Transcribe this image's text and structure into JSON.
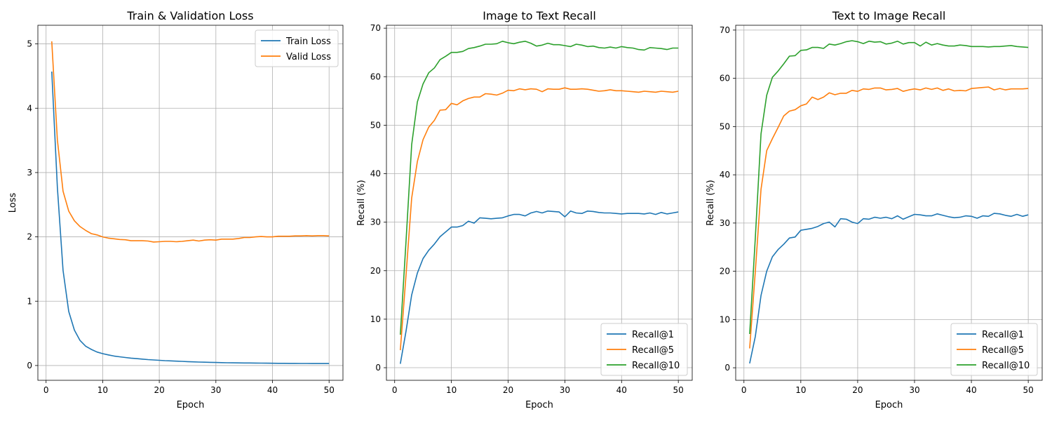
{
  "colors": {
    "blue": "#1f77b4",
    "orange": "#ff7f0e",
    "green": "#2ca02c",
    "grid": "#b0b0b0",
    "frame": "#000000"
  },
  "chart_data": [
    {
      "type": "line",
      "title": "Train & Validation Loss",
      "xlabel": "Epoch",
      "ylabel": "Loss",
      "xlim": [
        -1.45,
        52.45
      ],
      "ylim": [
        -0.23,
        5.29
      ],
      "xticks": [
        "0",
        "10",
        "20",
        "30",
        "40",
        "50"
      ],
      "yticks": [
        "0",
        "1",
        "2",
        "3",
        "4",
        "5"
      ],
      "grid": true,
      "legend_position": "top-right",
      "x": [
        1,
        2,
        3,
        4,
        5,
        6,
        7,
        8,
        9,
        10,
        11,
        12,
        13,
        14,
        15,
        16,
        17,
        18,
        19,
        20,
        21,
        22,
        23,
        24,
        25,
        26,
        27,
        28,
        29,
        30,
        31,
        32,
        33,
        34,
        35,
        36,
        37,
        38,
        39,
        40,
        41,
        42,
        43,
        44,
        45,
        46,
        47,
        48,
        49,
        50
      ],
      "series": [
        {
          "name": "Train Loss",
          "color": "blue",
          "values": [
            4.57,
            2.77,
            1.48,
            0.84,
            0.55,
            0.39,
            0.3,
            0.25,
            0.21,
            0.185,
            0.165,
            0.148,
            0.135,
            0.125,
            0.115,
            0.107,
            0.099,
            0.092,
            0.086,
            0.081,
            0.076,
            0.072,
            0.068,
            0.064,
            0.06,
            0.057,
            0.054,
            0.051,
            0.049,
            0.047,
            0.045,
            0.043,
            0.042,
            0.041,
            0.04,
            0.039,
            0.038,
            0.037,
            0.036,
            0.035,
            0.034,
            0.034,
            0.033,
            0.033,
            0.032,
            0.032,
            0.031,
            0.031,
            0.031,
            0.031
          ]
        },
        {
          "name": "Valid Loss",
          "color": "orange",
          "values": [
            5.04,
            3.51,
            2.71,
            2.4,
            2.25,
            2.16,
            2.1,
            2.05,
            2.03,
            2.0,
            1.98,
            1.97,
            1.96,
            1.955,
            1.94,
            1.94,
            1.94,
            1.935,
            1.92,
            1.925,
            1.93,
            1.93,
            1.925,
            1.93,
            1.94,
            1.95,
            1.935,
            1.95,
            1.955,
            1.95,
            1.965,
            1.965,
            1.965,
            1.975,
            1.99,
            1.99,
            2.0,
            2.005,
            2.0,
            2.0,
            2.01,
            2.01,
            2.01,
            2.015,
            2.015,
            2.02,
            2.015,
            2.02,
            2.02,
            2.015
          ]
        }
      ]
    },
    {
      "type": "line",
      "title": "Image to Text Recall",
      "xlabel": "Epoch",
      "ylabel": "Recall (%)",
      "xlim": [
        -1.45,
        52.45
      ],
      "ylim": [
        -2.6,
        70.6
      ],
      "xticks": [
        "0",
        "10",
        "20",
        "30",
        "40",
        "50"
      ],
      "yticks": [
        "0",
        "10",
        "20",
        "30",
        "40",
        "50",
        "60",
        "70"
      ],
      "grid": true,
      "legend_position": "bottom-right",
      "x": [
        1,
        2,
        3,
        4,
        5,
        6,
        7,
        8,
        9,
        10,
        11,
        12,
        13,
        14,
        15,
        16,
        17,
        18,
        19,
        20,
        21,
        22,
        23,
        24,
        25,
        26,
        27,
        28,
        29,
        30,
        31,
        32,
        33,
        34,
        35,
        36,
        37,
        38,
        39,
        40,
        41,
        42,
        43,
        44,
        45,
        46,
        47,
        48,
        49,
        50
      ],
      "series": [
        {
          "name": "Recall@1",
          "color": "blue",
          "values": [
            0.8,
            7.5,
            15.0,
            19.5,
            22.5,
            24.2,
            25.5,
            27.0,
            28.0,
            29.0,
            29.0,
            29.3,
            30.2,
            29.8,
            30.9,
            30.8,
            30.7,
            30.8,
            30.9,
            31.3,
            31.6,
            31.6,
            31.3,
            31.9,
            32.2,
            31.9,
            32.3,
            32.2,
            32.1,
            31.1,
            32.3,
            31.9,
            31.8,
            32.3,
            32.2,
            32.0,
            31.9,
            31.9,
            31.8,
            31.7,
            31.8,
            31.8,
            31.8,
            31.7,
            31.9,
            31.6,
            32.0,
            31.7,
            31.9,
            32.1
          ]
        },
        {
          "name": "Recall@5",
          "color": "orange",
          "values": [
            3.6,
            19.0,
            35.0,
            42.5,
            47.0,
            49.6,
            51.0,
            53.1,
            53.2,
            54.5,
            54.2,
            55.0,
            55.5,
            55.8,
            55.8,
            56.5,
            56.4,
            56.2,
            56.6,
            57.2,
            57.1,
            57.5,
            57.3,
            57.5,
            57.4,
            56.9,
            57.5,
            57.4,
            57.4,
            57.7,
            57.4,
            57.4,
            57.5,
            57.4,
            57.2,
            57.0,
            57.1,
            57.3,
            57.1,
            57.1,
            57.0,
            56.9,
            56.8,
            57.0,
            56.9,
            56.8,
            57.0,
            56.9,
            56.8,
            57.0
          ]
        },
        {
          "name": "Recall@10",
          "color": "green",
          "values": [
            6.8,
            26.0,
            46.0,
            54.8,
            58.5,
            60.8,
            61.8,
            63.5,
            64.2,
            65.0,
            65.0,
            65.2,
            65.8,
            66.0,
            66.3,
            66.7,
            66.7,
            66.8,
            67.3,
            67.0,
            66.8,
            67.1,
            67.3,
            66.9,
            66.3,
            66.5,
            66.9,
            66.6,
            66.6,
            66.4,
            66.2,
            66.7,
            66.5,
            66.2,
            66.3,
            66.0,
            65.9,
            66.1,
            65.9,
            66.2,
            66.0,
            65.9,
            65.6,
            65.5,
            66.0,
            65.9,
            65.8,
            65.6,
            65.9,
            65.9
          ]
        }
      ]
    },
    {
      "type": "line",
      "title": "Text to Image Recall",
      "xlabel": "Epoch",
      "ylabel": "Recall (%)",
      "xlim": [
        -1.45,
        52.45
      ],
      "ylim": [
        -2.6,
        71.0
      ],
      "xticks": [
        "0",
        "10",
        "20",
        "30",
        "40",
        "50"
      ],
      "yticks": [
        "0",
        "10",
        "20",
        "30",
        "40",
        "50",
        "60",
        "70"
      ],
      "grid": true,
      "legend_position": "bottom-right",
      "x": [
        1,
        2,
        3,
        4,
        5,
        6,
        7,
        8,
        9,
        10,
        11,
        12,
        13,
        14,
        15,
        16,
        17,
        18,
        19,
        20,
        21,
        22,
        23,
        24,
        25,
        26,
        27,
        28,
        29,
        30,
        31,
        32,
        33,
        34,
        35,
        36,
        37,
        38,
        39,
        40,
        41,
        42,
        43,
        44,
        45,
        46,
        47,
        48,
        49,
        50
      ],
      "series": [
        {
          "name": "Recall@1",
          "color": "blue",
          "values": [
            0.9,
            6.5,
            15.0,
            20.0,
            23.0,
            24.5,
            25.6,
            26.9,
            27.1,
            28.5,
            28.7,
            28.9,
            29.3,
            29.9,
            30.2,
            29.2,
            30.9,
            30.8,
            30.2,
            29.9,
            30.9,
            30.8,
            31.2,
            31.0,
            31.2,
            30.9,
            31.5,
            30.8,
            31.3,
            31.8,
            31.7,
            31.5,
            31.5,
            31.9,
            31.6,
            31.3,
            31.1,
            31.2,
            31.5,
            31.4,
            31.0,
            31.5,
            31.4,
            32.0,
            31.9,
            31.6,
            31.4,
            31.8,
            31.4,
            31.7
          ]
        },
        {
          "name": "Recall@5",
          "color": "orange",
          "values": [
            4.0,
            20.0,
            37.0,
            45.0,
            47.5,
            49.8,
            52.2,
            53.2,
            53.5,
            54.3,
            54.7,
            56.1,
            55.6,
            56.1,
            57.0,
            56.6,
            56.9,
            56.9,
            57.5,
            57.3,
            57.8,
            57.7,
            58.0,
            58.0,
            57.6,
            57.7,
            57.9,
            57.3,
            57.6,
            57.8,
            57.6,
            58.0,
            57.7,
            58.0,
            57.5,
            57.8,
            57.4,
            57.5,
            57.4,
            57.9,
            58.0,
            58.1,
            58.2,
            57.6,
            57.9,
            57.6,
            57.8,
            57.8,
            57.8,
            57.9
          ]
        },
        {
          "name": "Recall@10",
          "color": "green",
          "values": [
            7.0,
            27.0,
            48.5,
            56.5,
            60.2,
            61.5,
            63.0,
            64.6,
            64.7,
            65.8,
            65.9,
            66.4,
            66.4,
            66.2,
            67.1,
            66.9,
            67.2,
            67.6,
            67.8,
            67.6,
            67.2,
            67.7,
            67.5,
            67.6,
            67.1,
            67.3,
            67.7,
            67.1,
            67.4,
            67.4,
            66.7,
            67.5,
            66.9,
            67.2,
            66.9,
            66.7,
            66.7,
            66.9,
            66.8,
            66.6,
            66.6,
            66.6,
            66.5,
            66.6,
            66.6,
            66.7,
            66.8,
            66.6,
            66.5,
            66.4
          ]
        }
      ]
    }
  ]
}
